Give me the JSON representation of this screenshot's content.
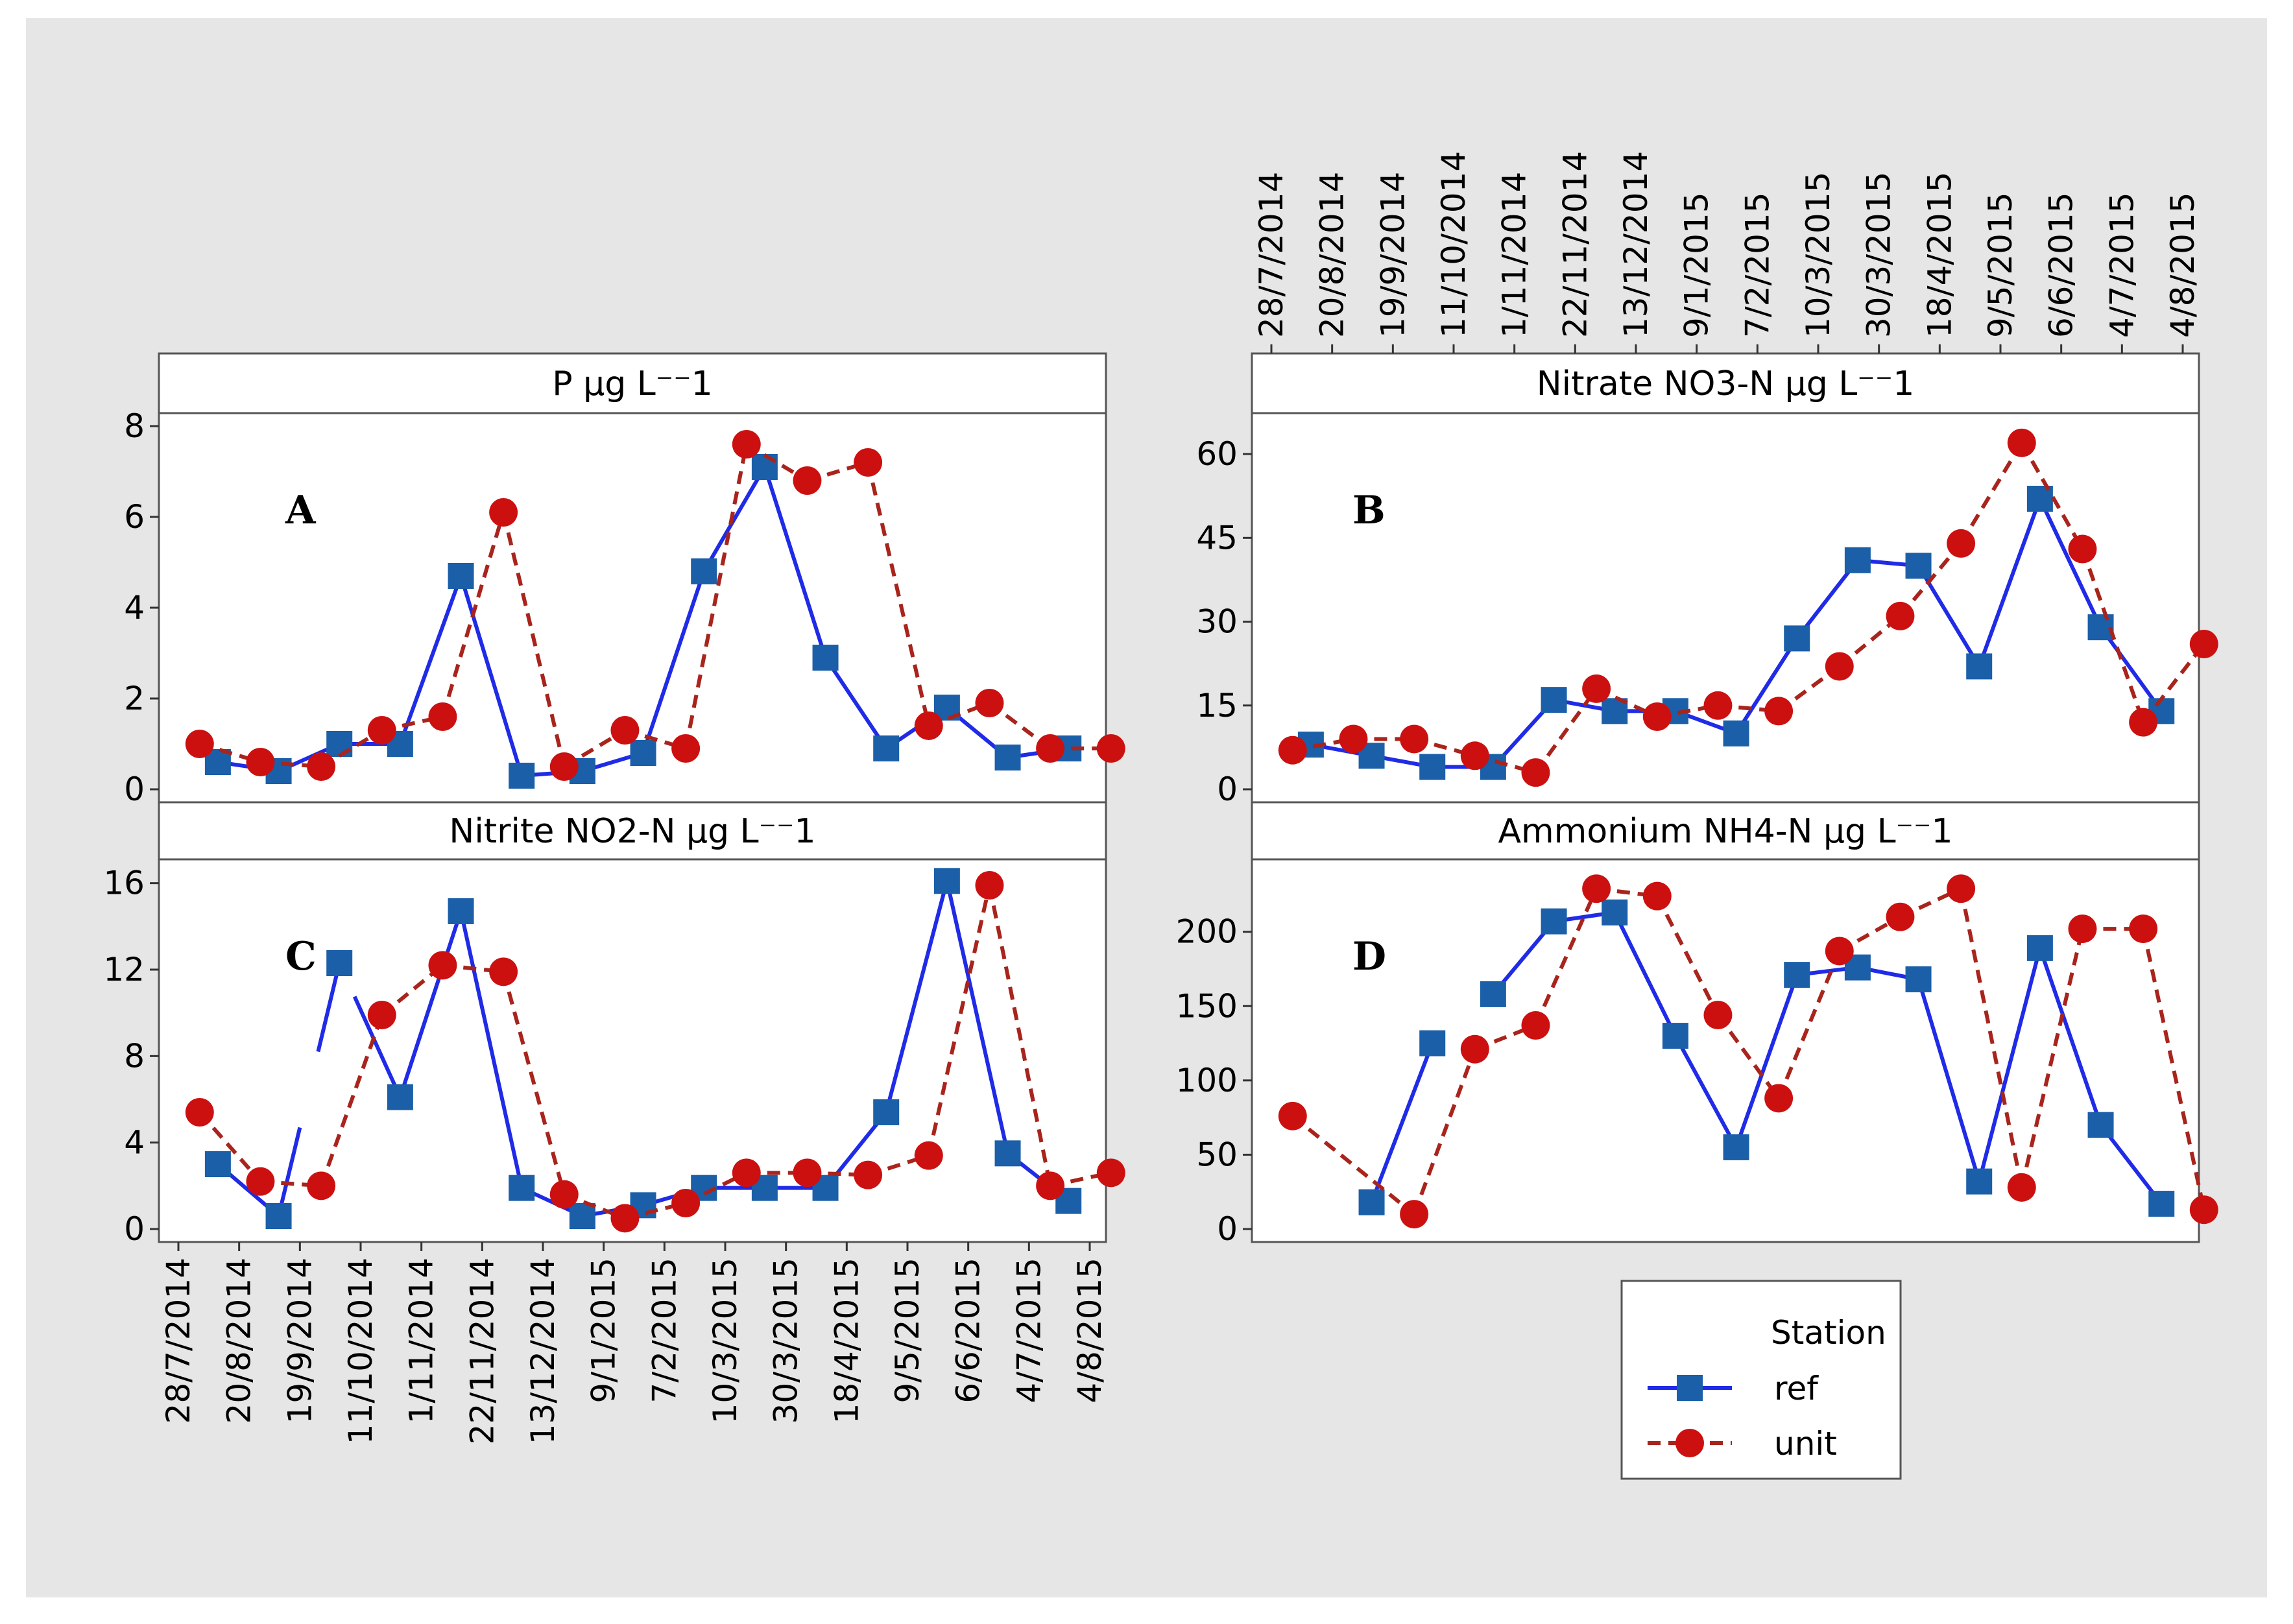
{
  "colors": {
    "background": "#e6e6e6",
    "panel": "#ffffff",
    "ref": "#1f2be6",
    "ref_marker": "#1b5fa8",
    "unit": "#a8241c",
    "unit_marker": "#cc1010"
  },
  "dates": [
    "28/7/2014",
    "20/8/2014",
    "19/9/2014",
    "11/10/2014",
    "1/11/2014",
    "22/11/2014",
    "13/12/2014",
    "9/1/2015",
    "7/2/2015",
    "10/3/2015",
    "30/3/2015",
    "18/4/2015",
    "9/5/2015",
    "6/6/2015",
    "4/7/2015",
    "4/8/2015"
  ],
  "legend": {
    "title": "Station",
    "items": [
      {
        "label": "ref",
        "key": "ref"
      },
      {
        "label": "unit",
        "key": "unit"
      }
    ]
  },
  "chart_data": [
    {
      "type": "line",
      "id": "A",
      "letter": "A",
      "title": "P µg L⁻⁻1",
      "yticks": [
        0,
        2,
        4,
        6,
        8
      ],
      "ylim": [
        0,
        8
      ],
      "series": [
        {
          "name": "ref",
          "offset": -0.35,
          "values": [
            null,
            0.6,
            0.4,
            1.0,
            1.0,
            4.7,
            0.3,
            0.4,
            0.8,
            4.8,
            7.1,
            2.9,
            0.9,
            1.8,
            0.7,
            0.9
          ]
        },
        {
          "name": "unit",
          "offset": 0.35,
          "values": [
            1.0,
            0.6,
            0.5,
            1.3,
            1.6,
            6.1,
            0.5,
            1.3,
            0.9,
            7.6,
            6.8,
            7.2,
            1.4,
            1.9,
            0.9,
            0.9
          ]
        }
      ]
    },
    {
      "type": "line",
      "id": "B",
      "letter": "B",
      "title": "Nitrate NO3-N  µg L⁻⁻1",
      "yticks": [
        0,
        15,
        30,
        45,
        60
      ],
      "ylim": [
        0,
        65
      ],
      "series": [
        {
          "name": "ref",
          "offset": -0.35,
          "values": [
            null,
            8,
            6,
            4,
            4,
            16,
            14,
            14,
            10,
            27,
            41,
            40,
            22,
            52,
            29,
            14
          ]
        },
        {
          "name": "unit",
          "offset": 0.35,
          "values": [
            7,
            9,
            9,
            6,
            3,
            18,
            13,
            15,
            14,
            22,
            31,
            44,
            62,
            43,
            12,
            26
          ]
        }
      ]
    },
    {
      "type": "line",
      "id": "C",
      "letter": "C",
      "title": "Nitrite NO2-N  µg L⁻⁻1",
      "yticks": [
        0,
        4,
        8,
        12,
        16
      ],
      "ylim": [
        0,
        16.5
      ],
      "series": [
        {
          "name": "ref",
          "offset": -0.35,
          "values": [
            null,
            3.0,
            0.6,
            12.3,
            6.1,
            14.7,
            1.9,
            0.6,
            1.1,
            1.9,
            1.9,
            1.9,
            5.4,
            16.1,
            3.5,
            1.3
          ],
          "gaps": [
            [
              2,
              2.3
            ],
            [
              2.7,
              2.9
            ]
          ]
        },
        {
          "name": "unit",
          "offset": 0.35,
          "values": [
            5.4,
            2.2,
            2.0,
            9.9,
            12.2,
            11.9,
            1.6,
            0.5,
            1.2,
            2.6,
            2.6,
            2.5,
            3.4,
            15.9,
            2.0,
            2.6
          ]
        }
      ]
    },
    {
      "type": "line",
      "id": "D",
      "letter": "D",
      "title": "Ammonium NH4-N  µg L⁻⁻1",
      "yticks": [
        0,
        50,
        100,
        150,
        200
      ],
      "ylim": [
        0,
        240
      ],
      "series": [
        {
          "name": "ref",
          "offset": -0.35,
          "values": [
            null,
            null,
            18,
            125,
            158,
            207,
            213,
            130,
            55,
            171,
            176,
            168,
            32,
            189,
            70,
            17
          ],
          "gaps": [
            [
              2.65,
              3.5
            ]
          ]
        },
        {
          "name": "unit",
          "offset": 0.35,
          "values": [
            76,
            null,
            10,
            121,
            137,
            229,
            224,
            144,
            88,
            187,
            210,
            229,
            28,
            202,
            202,
            13
          ]
        }
      ]
    }
  ]
}
